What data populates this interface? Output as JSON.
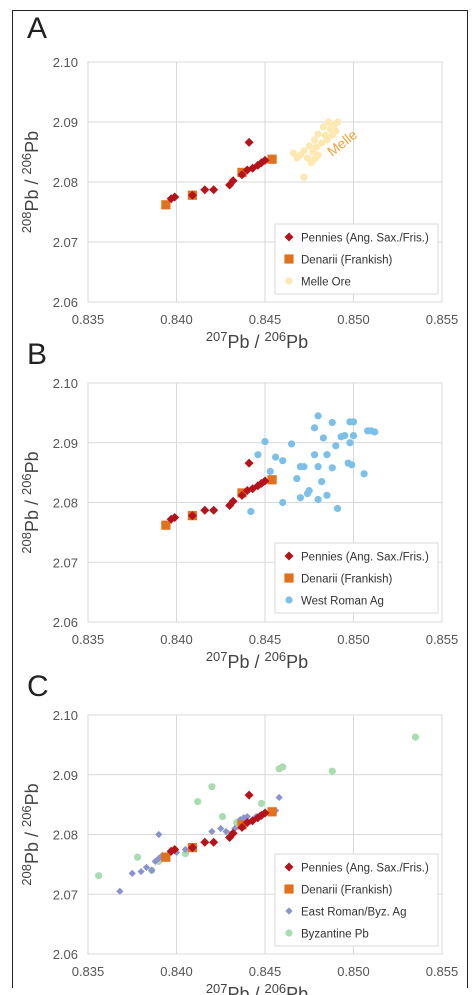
{
  "chart_data": [
    {
      "panel": "A",
      "type": "scatter",
      "xlabel": "207Pb / 206Pb",
      "ylabel": "208Pb / 206Pb",
      "xlim": [
        0.835,
        0.855
      ],
      "ylim": [
        2.06,
        2.1
      ],
      "xticks": [
        "0.835",
        "0.840",
        "0.845",
        "0.850",
        "0.855"
      ],
      "yticks": [
        "2.06",
        "2.07",
        "2.08",
        "2.09",
        "2.10"
      ],
      "grid": true,
      "legend_position": "bottom-right",
      "annotation": {
        "text": "Melle",
        "x": 0.8485,
        "y": 2.0845
      },
      "series": [
        {
          "name": "Pennies (Ang. Sax./Fris.)",
          "marker": "diamond",
          "color": "#b5121b",
          "points": [
            [
              0.8397,
              2.0772
            ],
            [
              0.8399,
              2.0775
            ],
            [
              0.8409,
              2.0778
            ],
            [
              0.8416,
              2.0787
            ],
            [
              0.8421,
              2.0787
            ],
            [
              0.843,
              2.0795
            ],
            [
              0.8432,
              2.0802
            ],
            [
              0.8437,
              2.0812
            ],
            [
              0.844,
              2.082
            ],
            [
              0.8443,
              2.0823
            ],
            [
              0.8446,
              2.0828
            ],
            [
              0.8448,
              2.0832
            ],
            [
              0.845,
              2.0836
            ],
            [
              0.8441,
              2.0866
            ]
          ]
        },
        {
          "name": "Denarii (Frankish)",
          "marker": "square",
          "color": "#e2711d",
          "points": [
            [
              0.8394,
              2.0762
            ],
            [
              0.8409,
              2.0778
            ],
            [
              0.8437,
              2.0816
            ],
            [
              0.8454,
              2.0838
            ]
          ]
        },
        {
          "name": "Melle Ore",
          "marker": "circle",
          "color": "#fde8b2",
          "points": [
            [
              0.847,
              2.0845
            ],
            [
              0.8472,
              2.0852
            ],
            [
              0.8474,
              2.084
            ],
            [
              0.8475,
              2.086
            ],
            [
              0.8476,
              2.0832
            ],
            [
              0.8477,
              2.085
            ],
            [
              0.8478,
              2.087
            ],
            [
              0.8479,
              2.0858
            ],
            [
              0.848,
              2.0845
            ],
            [
              0.848,
              2.088
            ],
            [
              0.8482,
              2.0865
            ],
            [
              0.8483,
              2.0892
            ],
            [
              0.8485,
              2.087
            ],
            [
              0.8486,
              2.09
            ],
            [
              0.8487,
              2.0888
            ],
            [
              0.8488,
              2.0878
            ],
            [
              0.8489,
              2.0895
            ],
            [
              0.849,
              2.0885
            ],
            [
              0.8491,
              2.09
            ],
            [
              0.8472,
              2.0808
            ],
            [
              0.8468,
              2.084
            ],
            [
              0.8466,
              2.0848
            ],
            [
              0.8478,
              2.0838
            ],
            [
              0.8484,
              2.0878
            ]
          ]
        }
      ]
    },
    {
      "panel": "B",
      "type": "scatter",
      "xlabel": "207Pb / 206Pb",
      "ylabel": "208Pb / 206Pb",
      "xlim": [
        0.835,
        0.855
      ],
      "ylim": [
        2.06,
        2.1
      ],
      "xticks": [
        "0.835",
        "0.840",
        "0.845",
        "0.850",
        "0.855"
      ],
      "yticks": [
        "2.06",
        "2.07",
        "2.08",
        "2.09",
        "2.10"
      ],
      "grid": true,
      "legend_position": "bottom-right",
      "series": [
        {
          "name": "Pennies (Ang. Sax./Fris.)",
          "marker": "diamond",
          "color": "#b5121b",
          "points": [
            [
              0.8397,
              2.0772
            ],
            [
              0.8399,
              2.0775
            ],
            [
              0.8409,
              2.0778
            ],
            [
              0.8416,
              2.0787
            ],
            [
              0.8421,
              2.0787
            ],
            [
              0.843,
              2.0795
            ],
            [
              0.8432,
              2.0802
            ],
            [
              0.8437,
              2.0812
            ],
            [
              0.844,
              2.082
            ],
            [
              0.8443,
              2.0823
            ],
            [
              0.8446,
              2.0828
            ],
            [
              0.8448,
              2.0832
            ],
            [
              0.845,
              2.0836
            ],
            [
              0.8441,
              2.0866
            ]
          ]
        },
        {
          "name": "Denarii (Frankish)",
          "marker": "square",
          "color": "#e2711d",
          "points": [
            [
              0.8394,
              2.0762
            ],
            [
              0.8409,
              2.0778
            ],
            [
              0.8437,
              2.0816
            ],
            [
              0.8454,
              2.0838
            ]
          ]
        },
        {
          "name": "West Roman Ag",
          "marker": "circle",
          "color": "#7cc0ea",
          "points": [
            [
              0.8442,
              2.0785
            ],
            [
              0.8446,
              2.088
            ],
            [
              0.845,
              2.0902
            ],
            [
              0.8453,
              2.0852
            ],
            [
              0.8456,
              2.0876
            ],
            [
              0.846,
              2.08
            ],
            [
              0.846,
              2.087
            ],
            [
              0.8465,
              2.0898
            ],
            [
              0.8468,
              2.084
            ],
            [
              0.847,
              2.086
            ],
            [
              0.847,
              2.0808
            ],
            [
              0.8472,
              2.086
            ],
            [
              0.8474,
              2.0815
            ],
            [
              0.8475,
              2.082
            ],
            [
              0.8478,
              2.088
            ],
            [
              0.8478,
              2.0925
            ],
            [
              0.848,
              2.0945
            ],
            [
              0.848,
              2.086
            ],
            [
              0.848,
              2.0805
            ],
            [
              0.8482,
              2.0835
            ],
            [
              0.8483,
              2.0908
            ],
            [
              0.8485,
              2.088
            ],
            [
              0.8485,
              2.0812
            ],
            [
              0.8488,
              2.0858
            ],
            [
              0.8488,
              2.0934
            ],
            [
              0.849,
              2.0895
            ],
            [
              0.8491,
              2.079
            ],
            [
              0.8493,
              2.091
            ],
            [
              0.8495,
              2.0912
            ],
            [
              0.8497,
              2.0866
            ],
            [
              0.8498,
              2.0935
            ],
            [
              0.8498,
              2.09
            ],
            [
              0.8499,
              2.0863
            ],
            [
              0.85,
              2.0935
            ],
            [
              0.85,
              2.0912
            ],
            [
              0.8506,
              2.0848
            ],
            [
              0.8508,
              2.092
            ],
            [
              0.851,
              2.092
            ],
            [
              0.8512,
              2.0918
            ]
          ]
        }
      ]
    },
    {
      "panel": "C",
      "type": "scatter",
      "xlabel": "207Pb / 206Pb",
      "ylabel": "208Pb / 206Pb",
      "xlim": [
        0.835,
        0.855
      ],
      "ylim": [
        2.06,
        2.1
      ],
      "xticks": [
        "0.835",
        "0.840",
        "0.845",
        "0.850",
        "0.855"
      ],
      "yticks": [
        "2.06",
        "2.07",
        "2.08",
        "2.09",
        "2.10"
      ],
      "grid": true,
      "legend_position": "bottom-right",
      "series": [
        {
          "name": "Pennies (Ang. Sax./Fris.)",
          "marker": "diamond",
          "color": "#b5121b",
          "points": [
            [
              0.8397,
              2.0772
            ],
            [
              0.8399,
              2.0775
            ],
            [
              0.8409,
              2.0778
            ],
            [
              0.8416,
              2.0787
            ],
            [
              0.8421,
              2.0787
            ],
            [
              0.843,
              2.0795
            ],
            [
              0.8432,
              2.0802
            ],
            [
              0.8437,
              2.0812
            ],
            [
              0.844,
              2.082
            ],
            [
              0.8443,
              2.0823
            ],
            [
              0.8446,
              2.0828
            ],
            [
              0.8448,
              2.0832
            ],
            [
              0.845,
              2.0836
            ],
            [
              0.8441,
              2.0866
            ]
          ]
        },
        {
          "name": "Denarii (Frankish)",
          "marker": "square",
          "color": "#e2711d",
          "points": [
            [
              0.8394,
              2.0762
            ],
            [
              0.8409,
              2.0778
            ],
            [
              0.8437,
              2.0816
            ],
            [
              0.8454,
              2.0838
            ]
          ]
        },
        {
          "name": "East Roman/Byz. Ag",
          "marker": "diamond-small",
          "color": "#8a93d0",
          "points": [
            [
              0.8368,
              2.0705
            ],
            [
              0.8375,
              2.0735
            ],
            [
              0.838,
              2.0738
            ],
            [
              0.8383,
              2.0745
            ],
            [
              0.8386,
              2.074
            ],
            [
              0.8388,
              2.0755
            ],
            [
              0.839,
              2.076
            ],
            [
              0.839,
              2.08
            ],
            [
              0.8392,
              2.0765
            ],
            [
              0.8394,
              2.0762
            ],
            [
              0.8396,
              2.0768
            ],
            [
              0.84,
              2.077
            ],
            [
              0.8405,
              2.0775
            ],
            [
              0.841,
              2.078
            ],
            [
              0.842,
              2.0805
            ],
            [
              0.8425,
              2.081
            ],
            [
              0.8428,
              2.0805
            ],
            [
              0.8433,
              2.081
            ],
            [
              0.8436,
              2.0825
            ],
            [
              0.8438,
              2.0828
            ],
            [
              0.844,
              2.083
            ],
            [
              0.8442,
              2.0822
            ],
            [
              0.8445,
              2.083
            ],
            [
              0.8447,
              2.0832
            ],
            [
              0.845,
              2.0835
            ],
            [
              0.8456,
              2.084
            ],
            [
              0.8458,
              2.0862
            ]
          ]
        },
        {
          "name": "Byzantine Pb",
          "marker": "circle",
          "color": "#a9dcb0",
          "points": [
            [
              0.8356,
              2.0731
            ],
            [
              0.8378,
              2.0762
            ],
            [
              0.8386,
              2.074
            ],
            [
              0.839,
              2.0755
            ],
            [
              0.8405,
              2.0768
            ],
            [
              0.8412,
              2.0855
            ],
            [
              0.842,
              2.088
            ],
            [
              0.8426,
              2.083
            ],
            [
              0.843,
              2.08
            ],
            [
              0.8434,
              2.082
            ],
            [
              0.844,
              2.082
            ],
            [
              0.8448,
              2.0852
            ],
            [
              0.8458,
              2.091
            ],
            [
              0.846,
              2.0913
            ],
            [
              0.8488,
              2.0906
            ],
            [
              0.8535,
              2.0963
            ]
          ]
        }
      ]
    }
  ],
  "panels": [
    {
      "label": "A"
    },
    {
      "label": "B"
    },
    {
      "label": "C"
    }
  ]
}
